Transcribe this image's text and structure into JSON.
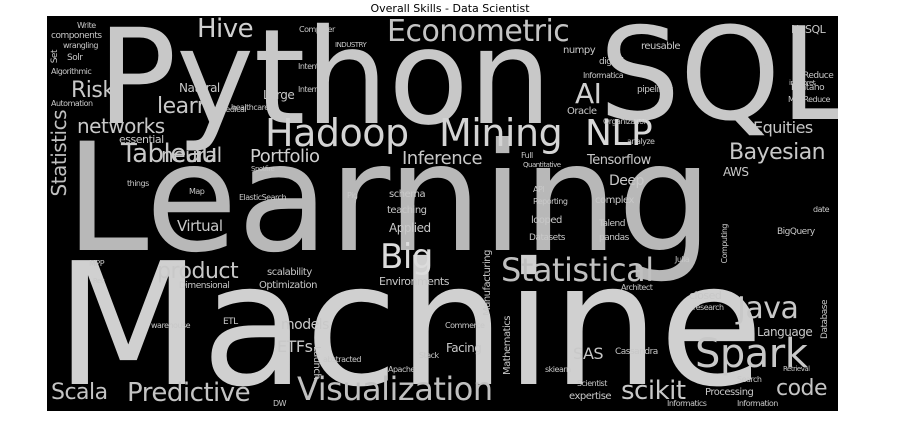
{
  "figure": {
    "title": "Overall Skills - Data Scientist"
  },
  "words": {
    "python": "Python",
    "sql": "SQL",
    "learning": "Learning",
    "machine": "Machine",
    "hadoop": "Hadoop",
    "mining": "Mining",
    "nlp": "NLP",
    "econometric": "Econometric",
    "hive": "Hive",
    "statistical": "Statistical",
    "big": "Big",
    "spark": "Spark",
    "visualization": "Visualization",
    "predictive": "Predictive",
    "scala": "Scala",
    "java": "Java",
    "scikit": "scikit",
    "code": "code",
    "bayesian": "Bayesian",
    "tableau": "Tableau",
    "statistics": "Statistics",
    "networks": "networks",
    "neural": "neural",
    "risk": "Risk",
    "ai": "AI",
    "portfolio": "Portfolio",
    "inference": "Inference",
    "product": "product",
    "learn": "learn",
    "equities": "Equities",
    "sas": "SAS",
    "etfs": "ETFs",
    "models": "models",
    "deep": "Deep",
    "tensorflow": "Tensorflow",
    "virtual": "Virtual",
    "applied": "Applied",
    "language": "Language",
    "nosql": "NoSQL",
    "aws": "AWS",
    "large": "Large",
    "natural": "Natural",
    "essential": "essential",
    "environments": "Environments",
    "facing": "Facing",
    "launch": "Launch",
    "manufacturing": "Manufacturing",
    "mathematics": "Mathematics",
    "closed": "closed",
    "cassandra": "Cassandra",
    "bigquery": "BigQuery",
    "database": "Database",
    "computing": "Computing",
    "pentaho": "Pentaho",
    "reduce": "Reduce",
    "mapreduce": "MapReduce",
    "pipelines": "pipelines",
    "oracle": "Oracle",
    "informatica": "Informatica",
    "numpy": "numpy",
    "reusable": "reusable",
    "digital": "digital",
    "healthcare": "healthcare",
    "internet": "Internet",
    "intent": "Intent",
    "medical": "Medical",
    "computer": "Computer",
    "industry": "INDUSTRY",
    "components": "components",
    "write": "Write",
    "wrangling": "wrangling",
    "solr": "Solr",
    "set": "Set",
    "algorithmic": "Algorithmic",
    "automation": "Automation",
    "elasticsearch": "ElasticSearch",
    "pig": "Pig",
    "schema": "schema",
    "teaching": "teaching",
    "api": "API",
    "reporting": "Reporting",
    "complex": "complex",
    "looped": "looped",
    "talend": "Talend",
    "datasets": "Datasets",
    "pandas": "pandas",
    "julia": "Julia",
    "scalability": "scalability",
    "optimization": "Optimization",
    "dimensional": "Dimensional",
    "warehouse": "warehouse",
    "etl": "ETL",
    "abstracted": "abstracted",
    "commerce": "Commerce",
    "stack": "Stack",
    "apache": "Apache",
    "skiearn": "skiearn",
    "scientist": "Scientist",
    "expertise": "expertise",
    "processing": "Processing",
    "informatics": "Informatics",
    "information": "Information",
    "search": "Search",
    "research": "research",
    "architect": "Architect",
    "things": "things",
    "map": "Map",
    "spotfire": "Spotfire",
    "build": "Build",
    "date": "date",
    "retrieval": "Retrieval",
    "interpret": "interpret",
    "dw": "DW",
    "organization": "Organization",
    "analyze": "analyze",
    "full": "Full",
    "quantitative": "Quantitative",
    "mpp": "MPP",
    "rec": "Rec"
  }
}
